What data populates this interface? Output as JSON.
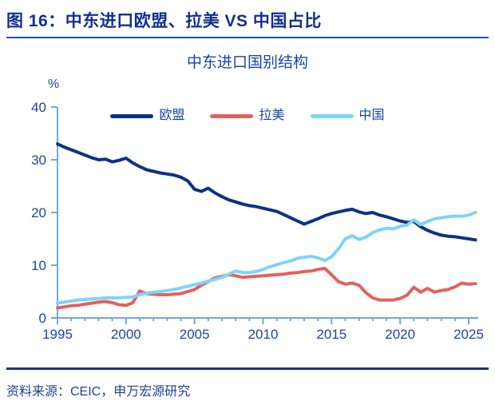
{
  "figure": {
    "title": "图 16：中东进口欧盟、拉美 VS 中国占比",
    "source": "资料来源：CEIC，申万宏源研究"
  },
  "colors": {
    "figure_title_text": "#122f8e",
    "chart_text": "#1545a5",
    "tick_label": "#1a45a6",
    "axis_line": "#6fa8dc",
    "title_underline": "#2550a8",
    "footer_rule": "#1c3284",
    "eu_line": "#0c3284",
    "latam_line": "#e0635e",
    "china_line": "#7ed5f5"
  },
  "chart_data": {
    "type": "line",
    "title": "中东进口国别结构",
    "unit_label": "%",
    "xlabel": "",
    "ylabel": "%",
    "x_start": 1995,
    "x_step": 0.5,
    "xlim": [
      1995,
      2025
    ],
    "ylim": [
      0,
      40
    ],
    "yticks": [
      0,
      10,
      20,
      30,
      40
    ],
    "xticks": [
      1995,
      2000,
      2005,
      2010,
      2015,
      2020,
      2025
    ],
    "minor_x_tick_interval": 1,
    "grid": false,
    "legend_position": "top",
    "series": [
      {
        "name": "欧盟",
        "color": "#0c3284",
        "values": [
          33.0,
          32.4,
          31.9,
          31.4,
          30.9,
          30.4,
          30.0,
          30.1,
          29.6,
          29.9,
          30.3,
          29.4,
          28.7,
          28.1,
          27.8,
          27.5,
          27.3,
          27.1,
          26.7,
          26.0,
          24.4,
          24.0,
          24.6,
          23.7,
          23.0,
          22.4,
          22.0,
          21.6,
          21.3,
          21.1,
          20.8,
          20.5,
          20.2,
          19.6,
          19.0,
          18.4,
          17.8,
          18.3,
          18.8,
          19.4,
          19.8,
          20.1,
          20.4,
          20.6,
          20.1,
          19.8,
          20.0,
          19.5,
          19.2,
          18.8,
          18.4,
          18.1,
          18.3,
          17.3,
          16.6,
          16.1,
          15.7,
          15.5,
          15.4,
          15.2,
          15.0,
          14.8
        ]
      },
      {
        "name": "拉美",
        "color": "#e0635e",
        "values": [
          1.9,
          2.1,
          2.3,
          2.4,
          2.6,
          2.8,
          3.0,
          3.1,
          2.9,
          2.5,
          2.4,
          2.9,
          5.1,
          4.6,
          4.5,
          4.4,
          4.4,
          4.5,
          4.6,
          5.0,
          5.4,
          6.2,
          6.9,
          7.6,
          7.9,
          8.2,
          8.0,
          7.7,
          7.8,
          7.9,
          8.0,
          8.1,
          8.2,
          8.3,
          8.5,
          8.6,
          8.8,
          8.9,
          9.2,
          9.4,
          8.2,
          6.9,
          6.4,
          6.6,
          6.2,
          4.8,
          3.8,
          3.4,
          3.4,
          3.4,
          3.7,
          4.3,
          5.8,
          4.9,
          5.6,
          4.9,
          5.2,
          5.4,
          5.9,
          6.6,
          6.4,
          6.5
        ]
      },
      {
        "name": "中国",
        "color": "#7ed5f5",
        "values": [
          2.8,
          3.0,
          3.2,
          3.4,
          3.5,
          3.6,
          3.7,
          3.8,
          3.8,
          3.8,
          3.9,
          4.0,
          4.4,
          4.7,
          4.9,
          5.0,
          5.2,
          5.4,
          5.7,
          6.0,
          6.3,
          6.6,
          7.0,
          7.3,
          7.7,
          8.3,
          8.9,
          8.6,
          8.6,
          8.8,
          9.2,
          9.7,
          10.1,
          10.5,
          10.8,
          11.3,
          11.5,
          11.7,
          11.4,
          10.9,
          11.6,
          13.1,
          15.0,
          15.6,
          14.9,
          15.3,
          16.2,
          16.7,
          17.0,
          16.9,
          17.4,
          17.6,
          18.6,
          17.7,
          18.3,
          18.8,
          19.0,
          19.2,
          19.3,
          19.3,
          19.5,
          20.0
        ]
      }
    ]
  }
}
